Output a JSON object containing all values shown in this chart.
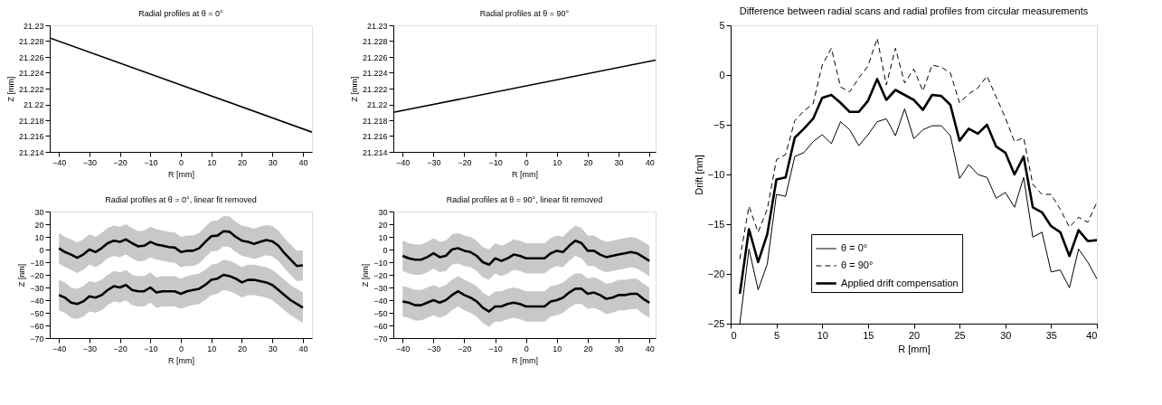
{
  "chart_data": [
    {
      "type": "line",
      "title": "Radial profiles at θ = 0°",
      "xlabel": "R [mm]",
      "ylabel": "Z [mm]",
      "x": [
        -43,
        43
      ],
      "xlim": [
        -43,
        43
      ],
      "xticks": [
        -40,
        -30,
        -20,
        -10,
        0,
        10,
        20,
        30,
        40
      ],
      "ylim": [
        21.214,
        21.23
      ],
      "yticks": [
        21.214,
        21.216,
        21.218,
        21.22,
        21.222,
        21.224,
        21.226,
        21.228,
        21.23
      ],
      "series": [
        {
          "color": "#000000",
          "values": [
            21.2284,
            21.2165
          ]
        }
      ]
    },
    {
      "type": "line",
      "title": "Radial profiles at θ = 90°",
      "xlabel": "R [mm]",
      "ylabel": "Z [mm]",
      "x": [
        -43,
        42
      ],
      "xlim": [
        -43,
        42
      ],
      "xticks": [
        -40,
        -30,
        -20,
        -10,
        0,
        10,
        20,
        30,
        40
      ],
      "ylim": [
        21.214,
        21.23
      ],
      "yticks": [
        21.214,
        21.216,
        21.218,
        21.22,
        21.222,
        21.224,
        21.226,
        21.228,
        21.23
      ],
      "series": [
        {
          "color": "#000000",
          "values": [
            21.219,
            21.2256
          ]
        }
      ]
    },
    {
      "type": "line",
      "title": "Radial profiles at θ = 0°, linear fit removed",
      "xlabel": "R [mm]",
      "ylabel": "Z [nm]",
      "x": [
        -40,
        -38,
        -36,
        -34,
        -32,
        -30,
        -28,
        -26,
        -24,
        -22,
        -20,
        -18,
        -16,
        -14,
        -12,
        -10,
        -8,
        -6,
        -4,
        -2,
        0,
        2,
        4,
        6,
        8,
        10,
        12,
        14,
        16,
        18,
        20,
        22,
        24,
        26,
        28,
        30,
        32,
        34,
        36,
        38,
        40
      ],
      "xlim": [
        -43,
        43
      ],
      "xticks": [
        -40,
        -30,
        -20,
        -10,
        0,
        10,
        20,
        30,
        40
      ],
      "ylim": [
        -70,
        30
      ],
      "yticks": [
        -70,
        -60,
        -50,
        -40,
        -30,
        -20,
        -10,
        0,
        10,
        20,
        30
      ],
      "series": [
        {
          "color": "#000000",
          "values": [
            1,
            -2,
            -4,
            -6.5,
            -4,
            0,
            -2,
            1,
            5,
            7,
            6,
            8,
            5,
            2.5,
            3,
            6,
            4,
            3,
            2,
            1.5,
            -2,
            -1,
            -1,
            1,
            6,
            10.5,
            11,
            14.5,
            14,
            10,
            7,
            6,
            4.5,
            6,
            7.5,
            6.5,
            3,
            -3,
            -8,
            -13,
            -12.5
          ],
          "lower": [
            -11,
            -14,
            -16,
            -18.5,
            -16,
            -12,
            -14,
            -11,
            -7,
            -5,
            -6,
            -4,
            -7,
            -9.5,
            -9,
            -6,
            -8,
            -9,
            -10,
            -10.5,
            -14,
            -13,
            -13,
            -11,
            -6,
            -1.5,
            -1,
            2.5,
            2,
            -2,
            -5,
            -6,
            -7.5,
            -6,
            -4.5,
            -5.5,
            -9,
            -15,
            -20,
            -25,
            -24.5
          ],
          "upper": [
            13,
            10,
            8,
            5.5,
            8,
            12,
            10,
            13,
            17,
            19,
            18,
            20,
            17,
            14.5,
            15,
            18,
            16,
            15,
            14,
            13.5,
            10,
            11,
            11,
            13,
            18,
            22.5,
            23,
            26.5,
            26,
            22,
            19,
            18,
            16.5,
            18,
            19.5,
            18.5,
            15,
            9,
            4,
            -1,
            -0.5
          ]
        },
        {
          "color": "#000000",
          "values": [
            -36,
            -38,
            -42,
            -43,
            -41,
            -37,
            -38,
            -36,
            -32,
            -29,
            -30,
            -28,
            -32,
            -33,
            -33,
            -30,
            -34,
            -33,
            -33,
            -33,
            -35,
            -33,
            -32,
            -31,
            -28,
            -24,
            -23,
            -20,
            -21,
            -23,
            -26,
            -24,
            -24,
            -25,
            -26,
            -28,
            -32,
            -36,
            -40,
            -43,
            -46
          ],
          "lower": [
            -48,
            -50,
            -54,
            -55,
            -53,
            -49,
            -50,
            -48,
            -44,
            -41,
            -42,
            -40,
            -44,
            -45,
            -45,
            -42,
            -46,
            -45,
            -45,
            -45,
            -47,
            -45,
            -44,
            -43,
            -40,
            -36,
            -35,
            -32,
            -33,
            -35,
            -38,
            -36,
            -36,
            -37,
            -38,
            -40,
            -44,
            -48,
            -52,
            -55,
            -58
          ],
          "upper": [
            -24,
            -26,
            -30,
            -31,
            -29,
            -25,
            -26,
            -24,
            -20,
            -17,
            -18,
            -16,
            -20,
            -21,
            -21,
            -18,
            -22,
            -21,
            -21,
            -21,
            -23,
            -21,
            -20,
            -19,
            -16,
            -12,
            -11,
            -8,
            -9,
            -11,
            -14,
            -12,
            -12,
            -13,
            -14,
            -16,
            -20,
            -24,
            -28,
            -31,
            -34
          ]
        }
      ]
    },
    {
      "type": "line",
      "title": "Radial profiles at θ = 90°, linear fit removed",
      "xlabel": "R [mm]",
      "ylabel": "Z [nm]",
      "x": [
        -40,
        -38,
        -36,
        -34,
        -32,
        -30,
        -28,
        -26,
        -24,
        -22,
        -20,
        -18,
        -16,
        -14,
        -12,
        -10,
        -8,
        -6,
        -4,
        -2,
        0,
        2,
        4,
        6,
        8,
        10,
        12,
        14,
        16,
        18,
        20,
        22,
        24,
        26,
        28,
        30,
        32,
        34,
        36,
        38,
        40
      ],
      "xlim": [
        -43,
        42
      ],
      "xticks": [
        -40,
        -30,
        -20,
        -10,
        0,
        10,
        20,
        30,
        40
      ],
      "ylim": [
        -70,
        30
      ],
      "yticks": [
        -70,
        -60,
        -50,
        -40,
        -30,
        -20,
        -10,
        0,
        10,
        20,
        30
      ],
      "series": [
        {
          "color": "#000000",
          "values": [
            -5,
            -7,
            -8,
            -8,
            -6,
            -3,
            -6,
            -5,
            0,
            1,
            -1,
            -2,
            -5,
            -10,
            -12,
            -7,
            -9,
            -7,
            -4,
            -5,
            -7,
            -7,
            -7,
            -7,
            -3,
            -1,
            -2,
            3,
            7,
            5,
            -1,
            -1,
            -4,
            -6,
            -5,
            -4,
            -3,
            -2,
            -3,
            -6,
            -9
          ],
          "lower": [
            -17,
            -19,
            -20,
            -20,
            -18,
            -15,
            -18,
            -17,
            -12,
            -11,
            -13,
            -14,
            -17,
            -22,
            -24,
            -19,
            -21,
            -19,
            -16,
            -17,
            -19,
            -19,
            -19,
            -19,
            -15,
            -13,
            -14,
            -9,
            -5,
            -7,
            -13,
            -13,
            -16,
            -18,
            -17,
            -16,
            -15,
            -14,
            -15,
            -18,
            -21
          ],
          "upper": [
            7,
            5,
            4,
            4,
            6,
            9,
            6,
            7,
            12,
            13,
            11,
            10,
            7,
            2,
            0,
            5,
            3,
            5,
            8,
            7,
            5,
            5,
            5,
            5,
            9,
            11,
            10,
            15,
            19,
            17,
            11,
            11,
            8,
            6,
            7,
            8,
            9,
            10,
            9,
            6,
            3
          ]
        },
        {
          "color": "#000000",
          "values": [
            -41,
            -42,
            -44,
            -44,
            -42,
            -40,
            -42,
            -40,
            -36,
            -33,
            -36,
            -38,
            -41,
            -46,
            -49,
            -45,
            -45,
            -43,
            -42,
            -43,
            -45,
            -45,
            -45,
            -45,
            -41,
            -40,
            -38,
            -34,
            -31,
            -31,
            -35,
            -34,
            -36,
            -39,
            -38,
            -36,
            -36,
            -35,
            -35,
            -39,
            -42
          ],
          "lower": [
            -53,
            -54,
            -56,
            -56,
            -54,
            -52,
            -54,
            -52,
            -48,
            -45,
            -48,
            -50,
            -53,
            -58,
            -61,
            -57,
            -57,
            -55,
            -54,
            -55,
            -57,
            -57,
            -57,
            -57,
            -53,
            -52,
            -50,
            -46,
            -43,
            -43,
            -47,
            -46,
            -48,
            -51,
            -50,
            -48,
            -48,
            -47,
            -47,
            -51,
            -54
          ],
          "upper": [
            -29,
            -30,
            -32,
            -32,
            -30,
            -28,
            -30,
            -28,
            -24,
            -21,
            -24,
            -26,
            -29,
            -34,
            -37,
            -33,
            -33,
            -31,
            -30,
            -31,
            -33,
            -33,
            -33,
            -33,
            -29,
            -28,
            -26,
            -22,
            -19,
            -19,
            -23,
            -22,
            -24,
            -27,
            -26,
            -24,
            -24,
            -23,
            -23,
            -27,
            -30
          ]
        }
      ]
    },
    {
      "type": "line",
      "title": "Difference between radial scans and radial profiles from circular measurements",
      "xlabel": "R [mm]",
      "ylabel": "Drift [nm]",
      "x": [
        1,
        2,
        3,
        4,
        5,
        6,
        7,
        8,
        9,
        10,
        11,
        12,
        13,
        14,
        15,
        16,
        17,
        18,
        19,
        20,
        21,
        22,
        23,
        24,
        25,
        26,
        27,
        28,
        29,
        30,
        31,
        32,
        33,
        34,
        35,
        36,
        37,
        38,
        39,
        40
      ],
      "xlim": [
        0,
        40
      ],
      "xticks": [
        0,
        5,
        10,
        15,
        20,
        25,
        30,
        35,
        40
      ],
      "ylim": [
        -25,
        5
      ],
      "yticks": [
        -25,
        -20,
        -15,
        -10,
        -5,
        0,
        5
      ],
      "legend": "bottom",
      "series": [
        {
          "name": "θ = 0°",
          "color": "#000000",
          "line_style": "solid",
          "values": [
            -25,
            -17.5,
            -21.6,
            -19,
            -12,
            -12.2,
            -8.2,
            -7.8,
            -6.7,
            -6.0,
            -6.9,
            -4.7,
            -5.5,
            -7.1,
            -6.0,
            -4.7,
            -4.4,
            -6.1,
            -3.4,
            -6.4,
            -5.5,
            -5.1,
            -5.1,
            -6.1,
            -10.4,
            -9.0,
            -10.0,
            -10.3,
            -12.4,
            -11.8,
            -13.3,
            -10.3,
            -16.3,
            -15.8,
            -19.8,
            -19.6,
            -21.4,
            -17.5,
            -18.8,
            -20.5
          ]
        },
        {
          "name": "θ = 90°",
          "color": "#000000",
          "line_style": "dashed",
          "values": [
            -18.5,
            -13.2,
            -15.8,
            -13.5,
            -8.5,
            -8.0,
            -4.6,
            -3.6,
            -2.9,
            1.0,
            2.7,
            -1.2,
            -1.7,
            -0.3,
            0.9,
            3.7,
            -1.0,
            2.7,
            -0.8,
            0.6,
            -1.6,
            1.0,
            0.8,
            0.2,
            -2.8,
            -1.9,
            -1.3,
            -0.1,
            -2.2,
            -4.3,
            -6.7,
            -6.3,
            -11.0,
            -12.0,
            -12.0,
            -13.5,
            -15.3,
            -14.3,
            -14.8,
            -12.8
          ]
        },
        {
          "name": "Applied drift compensation",
          "color": "#000000",
          "line_style": "solid",
          "values": [
            -22,
            -15.5,
            -18.8,
            -16,
            -10.5,
            -10.3,
            -6.3,
            -5.4,
            -4.4,
            -2.3,
            -2.0,
            -2.8,
            -3.7,
            -3.7,
            -2.6,
            -0.4,
            -2.5,
            -1.5,
            -2.0,
            -2.5,
            -3.5,
            -2.0,
            -2.1,
            -3.0,
            -6.6,
            -5.4,
            -5.9,
            -5.0,
            -7.2,
            -7.8,
            -10.0,
            -8.2,
            -13.3,
            -13.8,
            -15.2,
            -15.8,
            -18.2,
            -15.6,
            -16.7,
            -16.6
          ]
        }
      ]
    }
  ]
}
